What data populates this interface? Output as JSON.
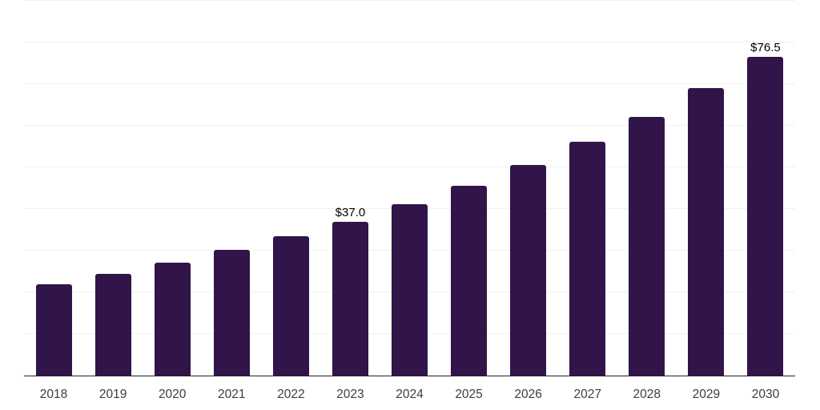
{
  "chart_data": {
    "type": "bar",
    "categories": [
      "2018",
      "2019",
      "2020",
      "2021",
      "2022",
      "2023",
      "2024",
      "2025",
      "2026",
      "2027",
      "2028",
      "2029",
      "2030"
    ],
    "values": [
      22.0,
      24.4,
      27.1,
      30.1,
      33.4,
      37.0,
      41.1,
      45.5,
      50.5,
      56.1,
      62.2,
      69.0,
      76.5
    ],
    "data_labels": [
      {
        "category": "2023",
        "text": "$37.0"
      },
      {
        "category": "2030",
        "text": "$76.5"
      }
    ],
    "title": "",
    "xlabel": "",
    "ylabel": "",
    "ylim": [
      0,
      90
    ],
    "gridline_step": 10,
    "grid": true,
    "legend": false
  },
  "colors": {
    "bar": "#31144a",
    "gridline": "#f0f0f0",
    "axis_line": "#222222",
    "tick_label": "#3d3d3d",
    "data_label": "#000000",
    "background": "#ffffff"
  }
}
